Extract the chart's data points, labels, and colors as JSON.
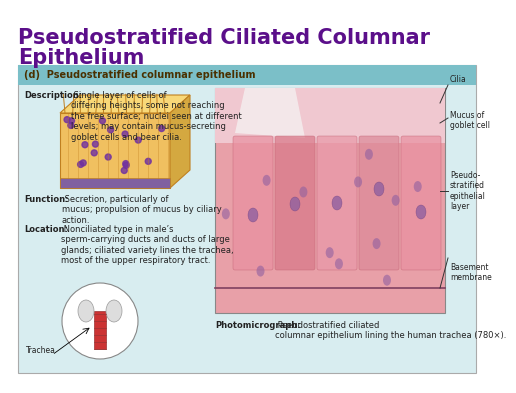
{
  "title_line1": "Pseudostratified Ciliated Columnar",
  "title_line2": "Epithelium",
  "title_color": "#5b0f8a",
  "title_fontsize": 15,
  "subtitle": "(d)  Pseudostratified columnar epithelium",
  "subtitle_bg": "#7bbfc8",
  "subtitle_color": "#4a3000",
  "subtitle_fontsize": 7,
  "panel_bg": "#d8edf0",
  "outer_bg": "#ffffff",
  "description_bold": "Description:",
  "description_text": " Single layer of cells of\ndiffering heights, some not reaching\nthe free surface; nuclei seen at different\nlevels; may contain mucus-secreting\ngoblet cells and bear cilia.",
  "function_bold": "Function:",
  "function_text": " Secretion, particularly of\nmucus; propulsion of mucus by ciliary\naction.",
  "location_bold": "Location:",
  "location_text": " Nonciliated type in male’s\nsperm-carrying ducts and ducts of large\nglands; ciliated variety lines the trachea,\nmost of the upper respiratory tract.",
  "trachea_label": "Trachea",
  "photo_bold": "Photomicrograph:",
  "photo_text": " Pseudostratified ciliated\ncolumnar epithelium lining the human trachea (780×).",
  "annotation_cilia": "Cilia",
  "annotation_mucus": "Mucus of\ngoblet cell",
  "annotation_pseudo": "Pseudo-\nstratified\nepithelial\nlayer",
  "annotation_basement": "Basement\nmembrane",
  "text_fontsize": 6.0,
  "annotation_fontsize": 5.5,
  "label_color": "#222222"
}
